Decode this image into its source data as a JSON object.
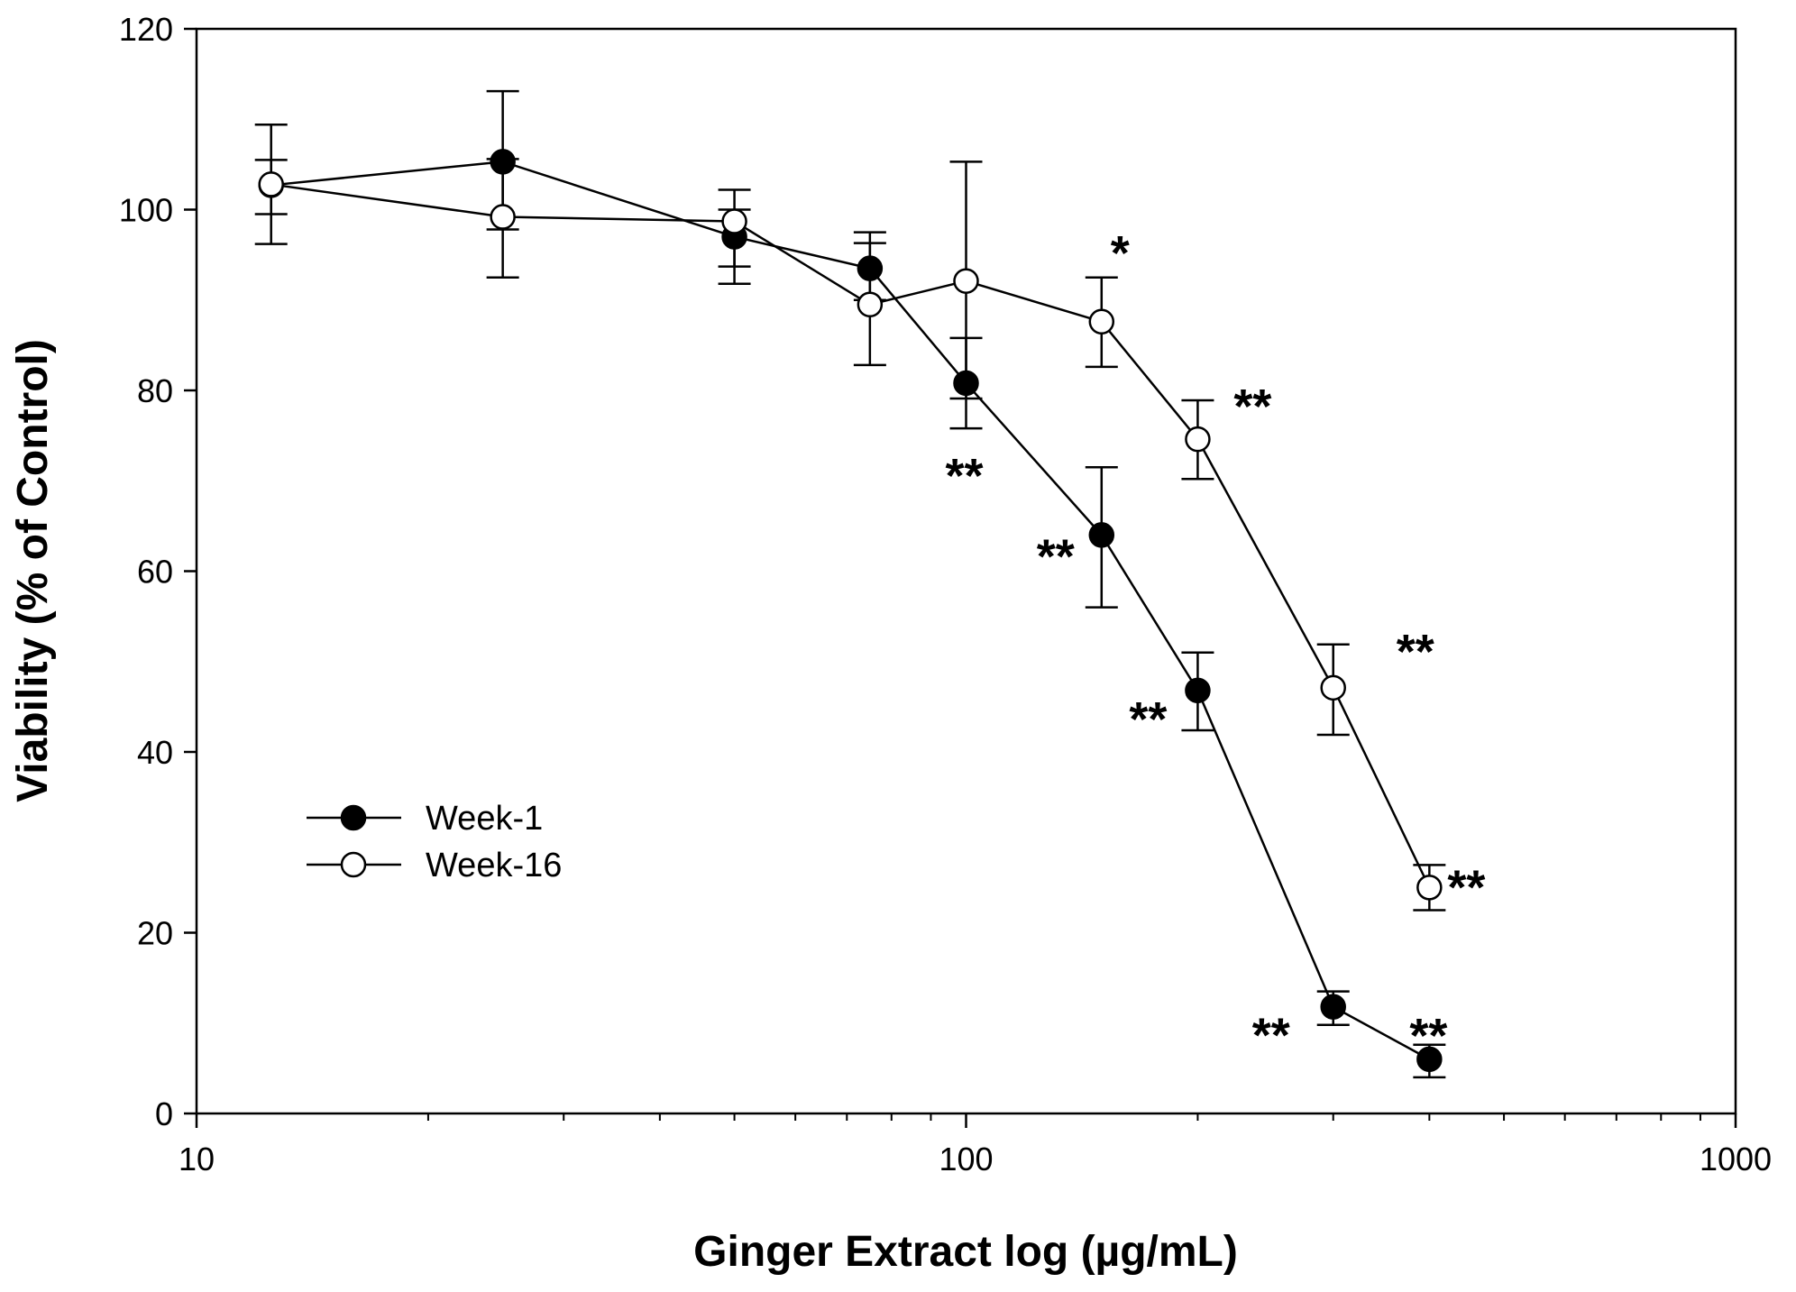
{
  "chart_data": {
    "type": "line",
    "title": "",
    "xlabel": "Ginger Extract log (µg/mL)",
    "ylabel": "Viability (% of Control)",
    "xscale": "log",
    "xlim": [
      10,
      1000
    ],
    "ylim": [
      0,
      120
    ],
    "xticks": [
      10,
      100,
      1000
    ],
    "xtick_labels": [
      "10",
      "100",
      "1000"
    ],
    "yticks": [
      0,
      20,
      40,
      60,
      80,
      100,
      120
    ],
    "ytick_labels": [
      "0",
      "20",
      "40",
      "60",
      "80",
      "100",
      "120"
    ],
    "grid": false,
    "legend_position": "lower-left",
    "series": [
      {
        "name": "Week-1",
        "marker": "filled-circle",
        "x": [
          12.5,
          25,
          50,
          75,
          100,
          150,
          200,
          300,
          400
        ],
        "y": [
          102.7,
          105.3,
          97.0,
          93.5,
          80.8,
          64.0,
          46.8,
          11.8,
          6.0
        ],
        "err_lo": [
          6.5,
          7.5,
          5.2,
          3.5,
          5.0,
          8.0,
          4.4,
          2.0,
          2.0
        ],
        "err_hi": [
          2.8,
          7.8,
          3.0,
          4.0,
          5.0,
          7.5,
          4.2,
          1.7,
          1.6
        ],
        "annotations": [
          {
            "x": 100,
            "text": "**",
            "position": "below-left"
          },
          {
            "x": 150,
            "text": "**",
            "position": "left"
          },
          {
            "x": 200,
            "text": "**",
            "position": "left"
          },
          {
            "x": 300,
            "text": "**",
            "position": "left"
          },
          {
            "x": 400,
            "text": "**",
            "position": "above"
          }
        ]
      },
      {
        "name": "Week-16",
        "marker": "open-circle",
        "x": [
          12.5,
          25,
          50,
          75,
          100,
          150,
          200,
          300,
          400
        ],
        "y": [
          102.8,
          99.2,
          98.7,
          89.5,
          92.1,
          87.6,
          74.6,
          47.1,
          25.0
        ],
        "err_lo": [
          3.3,
          6.7,
          5.0,
          6.7,
          13.0,
          5.0,
          4.4,
          5.2,
          2.5
        ],
        "err_hi": [
          6.6,
          6.4,
          3.5,
          6.8,
          13.2,
          4.9,
          4.3,
          4.8,
          2.5
        ],
        "annotations": [
          {
            "x": 150,
            "text": "*",
            "position": "above-right"
          },
          {
            "x": 200,
            "text": "**",
            "position": "above-right"
          },
          {
            "x": 300,
            "text": "**",
            "position": "above-right"
          },
          {
            "x": 400,
            "text": "**",
            "position": "right"
          }
        ]
      }
    ]
  }
}
